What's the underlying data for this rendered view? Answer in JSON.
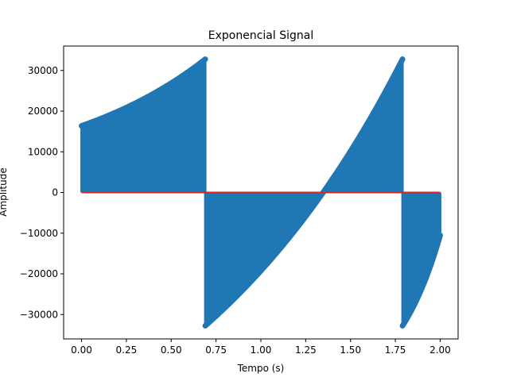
{
  "chart_data": {
    "type": "stem",
    "title": "Exponencial Signal",
    "xlabel": "Tempo (s)",
    "ylabel": "Amplitude",
    "xlim": [
      -0.1,
      2.1
    ],
    "ylim": [
      -36000,
      36000
    ],
    "x_ticks": [
      0.0,
      0.25,
      0.5,
      0.75,
      1.0,
      1.25,
      1.5,
      1.75,
      2.0
    ],
    "x_tick_labels": [
      "0.00",
      "0.25",
      "0.50",
      "0.75",
      "1.00",
      "1.25",
      "1.50",
      "1.75",
      "2.00"
    ],
    "y_ticks": [
      -30000,
      -20000,
      -10000,
      0,
      10000,
      20000,
      30000
    ],
    "y_tick_labels": [
      "−30000",
      "−20000",
      "−10000",
      "0",
      "10000",
      "20000",
      "30000"
    ],
    "grid": false,
    "series": [
      {
        "color": "#1f77b4",
        "baseline_color": "#d62728",
        "segments": [
          {
            "x_start": 0.0,
            "x_end": 0.69,
            "y_start": 16384,
            "y_end": 32767
          },
          {
            "x_start": 0.69,
            "x_end": 1.79,
            "y_start": -32768,
            "y_end": 32767
          },
          {
            "x_start": 1.79,
            "x_end": 2.0,
            "y_start": -32768,
            "y_end": -10500
          }
        ],
        "model": "y = 16384 * exp(t * ln2 / 0.693), wrapped to 16-bit signed range"
      }
    ]
  }
}
